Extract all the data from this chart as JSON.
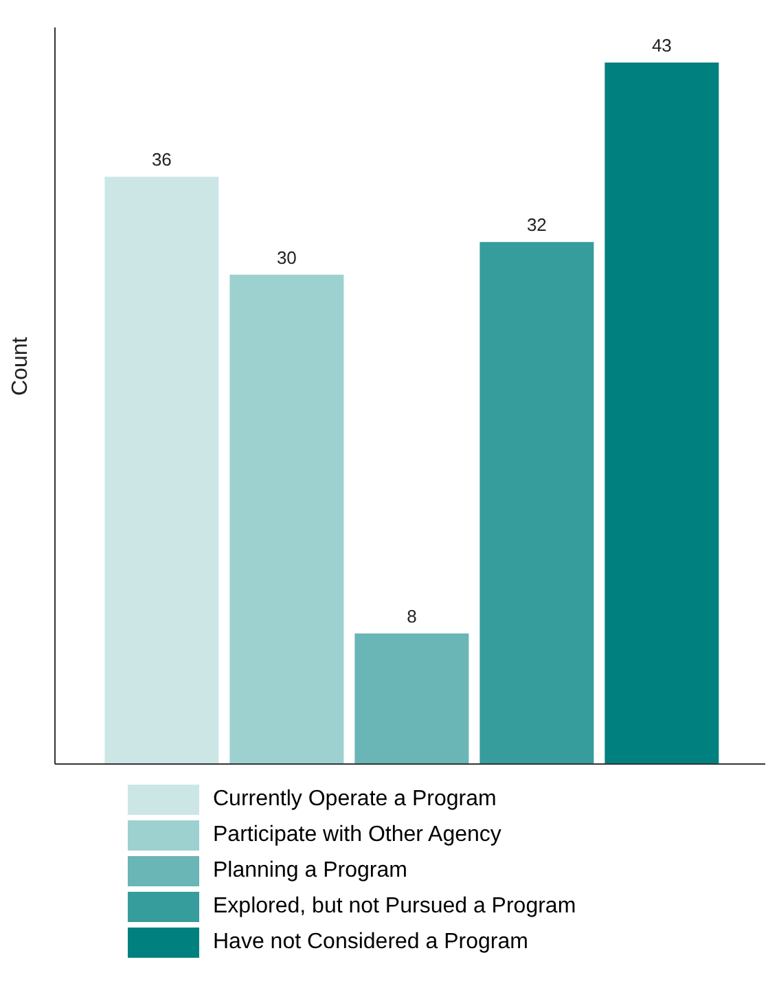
{
  "chart_data": {
    "type": "bar",
    "ylabel": "Count",
    "categories": [
      null
    ],
    "data_labels": true,
    "legend": "bottom",
    "tick_labels": false,
    "series": [
      {
        "name": "Currently Operate a Program",
        "color": "#cce6e6",
        "values": [
          36
        ]
      },
      {
        "name": "Participate with Other Agency",
        "color": "#9dd1d0",
        "values": [
          30
        ]
      },
      {
        "name": "Planning a Program",
        "color": "#6ab5b6",
        "values": [
          8
        ]
      },
      {
        "name": "Explored, but not Pursued a Program",
        "color": "#379c9c",
        "values": [
          32
        ]
      },
      {
        "name": "Have not Considered a Program",
        "color": "#00807f",
        "values": [
          43
        ]
      }
    ]
  }
}
